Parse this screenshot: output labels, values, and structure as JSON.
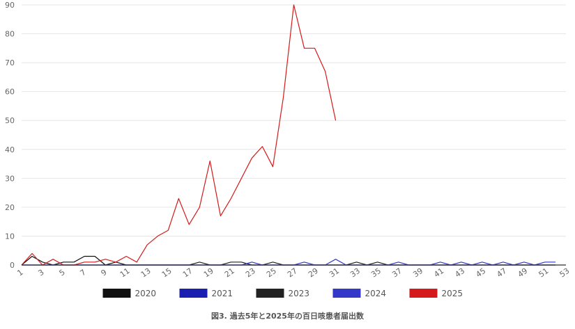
{
  "caption": "図3. 過去5年と2025年の百日咳患者届出数",
  "chart_data": {
    "type": "line",
    "title": "図3. 過去5年と2025年の百日咳患者届出数",
    "xlabel": "",
    "ylabel": "",
    "x_range": [
      1,
      53
    ],
    "x_ticks": [
      1,
      3,
      5,
      7,
      9,
      11,
      13,
      15,
      17,
      19,
      21,
      23,
      25,
      27,
      29,
      31,
      33,
      35,
      37,
      39,
      41,
      43,
      45,
      47,
      49,
      51,
      53
    ],
    "ylim": [
      0,
      90
    ],
    "y_ticks": [
      0,
      10,
      20,
      30,
      40,
      50,
      60,
      70,
      80,
      90
    ],
    "grid": true,
    "legend_position": "bottom",
    "series": [
      {
        "name": "2020",
        "color": "#111111",
        "x": [
          1,
          2,
          3,
          4,
          5,
          6,
          7,
          8,
          9,
          10,
          11,
          12,
          13,
          14,
          15,
          16,
          17,
          18,
          19,
          20,
          21,
          22,
          23,
          24,
          25,
          26,
          27,
          28,
          29,
          30,
          31,
          32,
          33,
          34,
          35,
          36,
          37,
          38,
          39,
          40,
          41,
          42,
          43,
          44,
          45,
          46,
          47,
          48,
          49,
          50,
          51,
          52,
          53
        ],
        "values": [
          0,
          3,
          1,
          0,
          1,
          1,
          3,
          3,
          0,
          1,
          0,
          0,
          0,
          0,
          0,
          0,
          0,
          0,
          0,
          0,
          0,
          0,
          0,
          0,
          0,
          0,
          0,
          0,
          0,
          0,
          0,
          0,
          0,
          0,
          0,
          0,
          0,
          0,
          0,
          0,
          0,
          0,
          0,
          0,
          0,
          0,
          0,
          0,
          0,
          0,
          0,
          0,
          0
        ]
      },
      {
        "name": "2021",
        "color": "#1a1fb0",
        "x": [
          1,
          2,
          3,
          4,
          5,
          6,
          7,
          8,
          9,
          10,
          11,
          12,
          13,
          14,
          15,
          16,
          17,
          18,
          19,
          20,
          21,
          22,
          23,
          24,
          25,
          26,
          27,
          28,
          29,
          30,
          31,
          32,
          33,
          34,
          35,
          36,
          37,
          38,
          39,
          40,
          41,
          42,
          43,
          44,
          45,
          46,
          47,
          48,
          49,
          50,
          51,
          52
        ],
        "values": [
          0,
          0,
          0,
          0,
          0,
          0,
          0,
          0,
          0,
          0,
          0,
          0,
          0,
          0,
          0,
          0,
          0,
          0,
          0,
          0,
          0,
          0,
          0,
          0,
          0,
          0,
          0,
          0,
          0,
          0,
          0,
          0,
          0,
          0,
          0,
          0,
          0,
          0,
          0,
          0,
          0,
          0,
          0,
          0,
          0,
          0,
          0,
          0,
          0,
          0,
          0,
          0
        ]
      },
      {
        "name": "2023",
        "color": "#222222",
        "x": [
          1,
          2,
          3,
          4,
          5,
          6,
          7,
          8,
          9,
          10,
          11,
          12,
          13,
          14,
          15,
          16,
          17,
          18,
          19,
          20,
          21,
          22,
          23,
          24,
          25,
          26,
          27,
          28,
          29,
          30,
          31,
          32,
          33,
          34,
          35,
          36,
          37,
          38,
          39,
          40,
          41,
          42,
          43,
          44,
          45,
          46,
          47,
          48,
          49,
          50,
          51,
          52
        ],
        "values": [
          0,
          0,
          0,
          0,
          0,
          0,
          0,
          0,
          0,
          0,
          0,
          0,
          0,
          0,
          0,
          0,
          0,
          1,
          0,
          0,
          1,
          1,
          0,
          0,
          1,
          0,
          0,
          0,
          0,
          0,
          0,
          0,
          1,
          0,
          1,
          0,
          0,
          0,
          0,
          0,
          0,
          0,
          0,
          0,
          0,
          0,
          0,
          0,
          0,
          0,
          0,
          0
        ]
      },
      {
        "name": "2024",
        "color": "#3438c8",
        "x": [
          1,
          2,
          3,
          4,
          5,
          6,
          7,
          8,
          9,
          10,
          11,
          12,
          13,
          14,
          15,
          16,
          17,
          18,
          19,
          20,
          21,
          22,
          23,
          24,
          25,
          26,
          27,
          28,
          29,
          30,
          31,
          32,
          33,
          34,
          35,
          36,
          37,
          38,
          39,
          40,
          41,
          42,
          43,
          44,
          45,
          46,
          47,
          48,
          49,
          50,
          51,
          52
        ],
        "values": [
          0,
          0,
          0,
          0,
          0,
          0,
          0,
          0,
          0,
          0,
          0,
          0,
          0,
          0,
          0,
          0,
          0,
          0,
          0,
          0,
          0,
          0,
          1,
          0,
          0,
          0,
          0,
          1,
          0,
          0,
          2,
          0,
          0,
          0,
          0,
          0,
          1,
          0,
          0,
          0,
          1,
          0,
          1,
          0,
          1,
          0,
          1,
          0,
          1,
          0,
          1,
          1
        ]
      },
      {
        "name": "2025",
        "color": "#d41a1a",
        "x": [
          1,
          2,
          3,
          4,
          5,
          6,
          7,
          8,
          9,
          10,
          11,
          12,
          13,
          14,
          15,
          16,
          17,
          18,
          19,
          20,
          21,
          22,
          23,
          24,
          25,
          26,
          27,
          28,
          29,
          30,
          31
        ],
        "values": [
          0,
          4,
          0,
          2,
          0,
          0,
          1,
          1,
          2,
          1,
          3,
          1,
          7,
          10,
          12,
          23,
          14,
          20,
          36,
          17,
          23,
          30,
          37,
          41,
          34,
          58,
          90,
          75,
          75,
          67,
          50
        ]
      }
    ]
  }
}
